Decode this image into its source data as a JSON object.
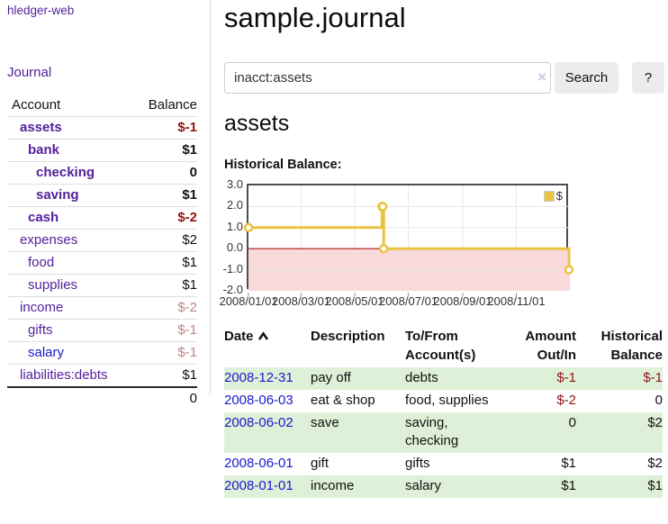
{
  "app_title": "hledger-web",
  "sidebar": {
    "journal_link": "Journal",
    "accounts": {
      "account_header": "Account",
      "balance_header": "Balance",
      "rows": [
        {
          "name": "assets",
          "balance": "$-1",
          "indent": 1,
          "bold": true,
          "tone": "neg",
          "link": "purple"
        },
        {
          "name": "bank",
          "balance": "$1",
          "indent": 2,
          "bold": true,
          "tone": "pos",
          "link": "purple"
        },
        {
          "name": "checking",
          "balance": "0",
          "indent": 3,
          "bold": true,
          "tone": "pos",
          "link": "purple"
        },
        {
          "name": "saving",
          "balance": "$1",
          "indent": 3,
          "bold": true,
          "tone": "pos",
          "link": "purple"
        },
        {
          "name": "cash",
          "balance": "$-2",
          "indent": 2,
          "bold": true,
          "tone": "neg",
          "link": "purple"
        },
        {
          "name": "expenses",
          "balance": "$2",
          "indent": 1,
          "bold": false,
          "tone": "pos",
          "link": "purple"
        },
        {
          "name": "food",
          "balance": "$1",
          "indent": 2,
          "bold": false,
          "tone": "pos",
          "link": "purple"
        },
        {
          "name": "supplies",
          "balance": "$1",
          "indent": 2,
          "bold": false,
          "tone": "pos",
          "link": "purple"
        },
        {
          "name": "income",
          "balance": "$-2",
          "indent": 1,
          "bold": false,
          "tone": "negmuted",
          "link": "purple"
        },
        {
          "name": "gifts",
          "balance": "$-1",
          "indent": 2,
          "bold": false,
          "tone": "negmuted",
          "link": "purple"
        },
        {
          "name": "salary",
          "balance": "$-1",
          "indent": 2,
          "bold": false,
          "tone": "negmuted",
          "link": "blue"
        },
        {
          "name": "liabilities:debts",
          "balance": "$1",
          "indent": 1,
          "bold": false,
          "tone": "pos",
          "link": "purple"
        }
      ],
      "total": "0"
    }
  },
  "main": {
    "title": "sample.journal",
    "search": {
      "value": "inacct:assets",
      "clear_icon": "×",
      "search_button": "Search",
      "help_button": "?"
    },
    "account_heading": "assets",
    "chart_label": "Historical Balance:"
  },
  "chart_data": {
    "type": "line",
    "title": "Historical Balance",
    "step": "after",
    "legend": [
      {
        "label": "$",
        "color": "#e9c342"
      }
    ],
    "legend_position": "top-right",
    "grid": true,
    "ylim": [
      -2,
      3
    ],
    "y_ticks": [
      {
        "value": 3,
        "label": "3.0"
      },
      {
        "value": 2,
        "label": "2.0"
      },
      {
        "value": 1,
        "label": "1.0"
      },
      {
        "value": 0,
        "label": "0.0"
      },
      {
        "value": -1,
        "label": "-1.0"
      },
      {
        "value": -2,
        "label": "-2.0"
      }
    ],
    "x_ticks": [
      {
        "day": 0,
        "label": "2008/01/01"
      },
      {
        "day": 60,
        "label": "2008/03/01"
      },
      {
        "day": 121,
        "label": "2008/05/01"
      },
      {
        "day": 182,
        "label": "2008/07/01"
      },
      {
        "day": 244,
        "label": "2008/09/01"
      },
      {
        "day": 305,
        "label": "2008/11/01"
      }
    ],
    "x_span_days": 366,
    "points": [
      {
        "date": "2008-01-01",
        "day": 0,
        "value": 1
      },
      {
        "date": "2008-06-01",
        "day": 152,
        "value": 2
      },
      {
        "date": "2008-06-02",
        "day": 153,
        "value": 2
      },
      {
        "date": "2008-06-03",
        "day": 154,
        "value": 0
      },
      {
        "date": "2008-12-31",
        "day": 365,
        "value": -1
      }
    ],
    "series_color": "#e9c342",
    "negative_region_color": "#f9d9d9",
    "zero_line_color": "#a81717",
    "gridline_color": "#e7e7e7"
  },
  "register": {
    "headers": [
      {
        "lines": [
          "Date"
        ],
        "align": "left",
        "sorted": "asc"
      },
      {
        "lines": [
          "Description"
        ],
        "align": "left"
      },
      {
        "lines": [
          "To/From",
          "Account(s)"
        ],
        "align": "left"
      },
      {
        "lines": [
          "Amount",
          "Out/In"
        ],
        "align": "right"
      },
      {
        "lines": [
          "Historical",
          "Balance"
        ],
        "align": "right"
      }
    ],
    "rows": [
      {
        "date": "2008-12-31",
        "description": "pay off",
        "accounts": "debts",
        "amount": "$-1",
        "balance": "$-1",
        "amount_neg": true,
        "balance_neg": true,
        "shaded": true
      },
      {
        "date": "2008-06-03",
        "description": "eat & shop",
        "accounts": "food, supplies",
        "amount": "$-2",
        "balance": "0",
        "amount_neg": true,
        "balance_neg": false,
        "shaded": false
      },
      {
        "date": "2008-06-02",
        "description": "save",
        "accounts": "saving, checking",
        "amount": "0",
        "balance": "$2",
        "amount_neg": false,
        "balance_neg": false,
        "shaded": true
      },
      {
        "date": "2008-06-01",
        "description": "gift",
        "accounts": "gifts",
        "amount": "$1",
        "balance": "$2",
        "amount_neg": false,
        "balance_neg": false,
        "shaded": false
      },
      {
        "date": "2008-01-01",
        "description": "income",
        "accounts": "salary",
        "amount": "$1",
        "balance": "$1",
        "amount_neg": false,
        "balance_neg": false,
        "shaded": true
      }
    ]
  }
}
